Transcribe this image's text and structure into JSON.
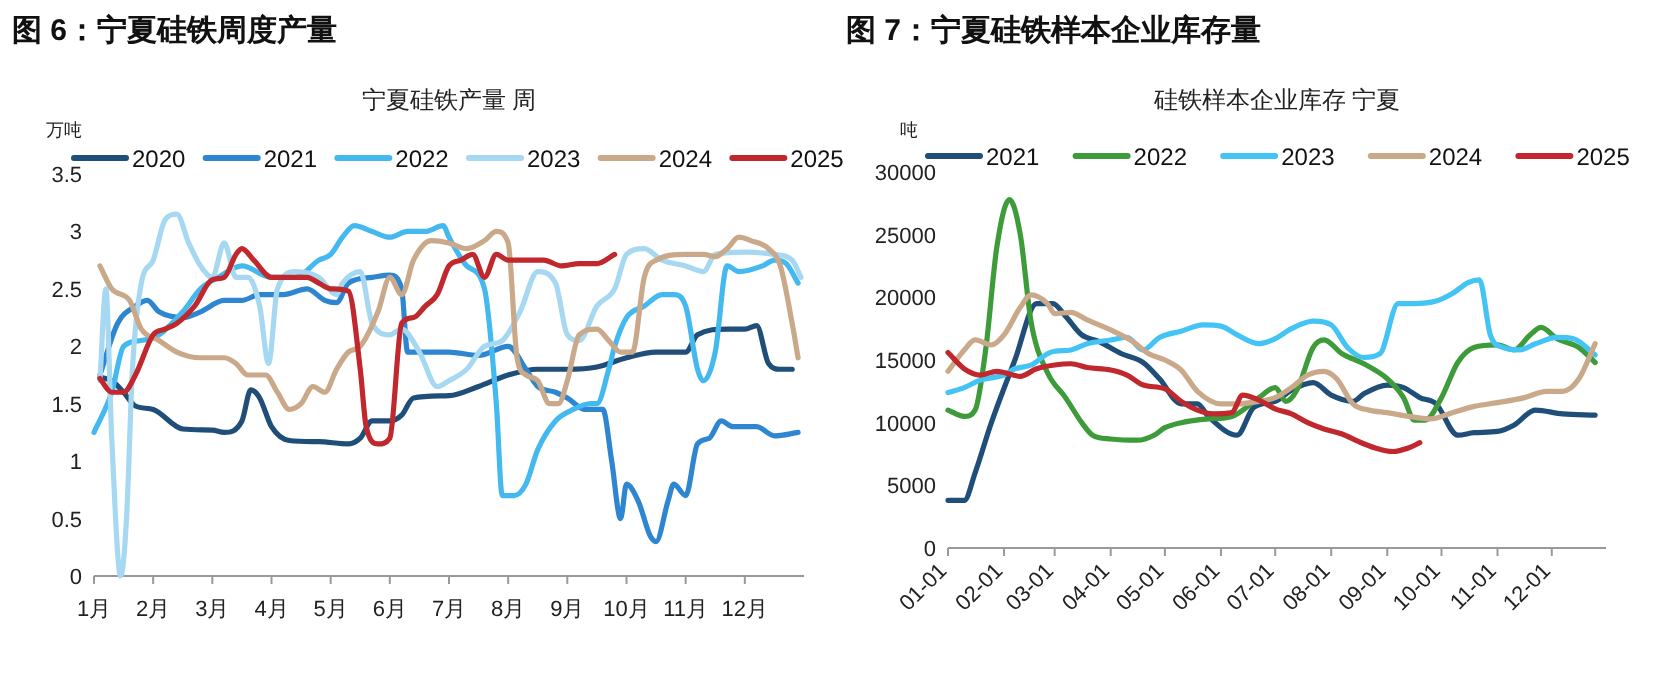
{
  "chart_data": [
    {
      "type": "line",
      "title": "图 6：宁夏硅铁周度产量",
      "subtitle": "宁夏硅铁产量 周",
      "ylabel": "万吨",
      "legend": "top",
      "xlim": [
        1,
        13
      ],
      "ylim": [
        0,
        3.5
      ],
      "xticks": [
        {
          "value": 1,
          "label": "1月"
        },
        {
          "value": 2,
          "label": "2月"
        },
        {
          "value": 3,
          "label": "3月"
        },
        {
          "value": 4,
          "label": "4月"
        },
        {
          "value": 5,
          "label": "5月"
        },
        {
          "value": 6,
          "label": "6月"
        },
        {
          "value": 7,
          "label": "7月"
        },
        {
          "value": 8,
          "label": "8月"
        },
        {
          "value": 9,
          "label": "9月"
        },
        {
          "value": 10,
          "label": "10月"
        },
        {
          "value": 11,
          "label": "11月"
        },
        {
          "value": 12,
          "label": "12月"
        }
      ],
      "yticks": [
        0,
        0.5,
        1,
        1.5,
        2,
        2.5,
        3,
        3.5
      ],
      "series": [
        {
          "name": "2020",
          "color": "#1f4e79",
          "x": [
            1.1,
            1.3,
            1.5,
            1.7,
            2.0,
            2.5,
            3.0,
            3.2,
            3.5,
            3.65,
            3.8,
            4.0,
            4.3,
            4.8,
            5.3,
            5.5,
            5.7,
            6.0,
            6.2,
            6.4,
            7.0,
            7.5,
            8.0,
            8.5,
            9.0,
            9.5,
            10.0,
            10.5,
            11.0,
            11.2,
            11.7,
            12.0,
            12.2,
            12.4,
            12.6,
            12.8
          ],
          "values": [
            1.73,
            1.7,
            1.6,
            1.48,
            1.45,
            1.28,
            1.27,
            1.25,
            1.35,
            1.62,
            1.55,
            1.3,
            1.18,
            1.17,
            1.15,
            1.2,
            1.35,
            1.35,
            1.4,
            1.55,
            1.57,
            1.65,
            1.75,
            1.8,
            1.8,
            1.82,
            1.9,
            1.95,
            1.95,
            2.1,
            2.15,
            2.15,
            2.18,
            1.85,
            1.8,
            1.8
          ]
        },
        {
          "name": "2021",
          "color": "#2e86d0",
          "x": [
            1.1,
            1.4,
            1.7,
            1.9,
            2.1,
            2.5,
            2.8,
            3.2,
            3.5,
            3.8,
            4.2,
            4.6,
            4.9,
            5.1,
            5.3,
            5.7,
            6.0,
            6.2,
            6.3,
            6.5,
            7.0,
            7.5,
            8.0,
            8.3,
            8.5,
            8.8,
            9.0,
            9.3,
            9.6,
            9.75,
            9.9,
            10.0,
            10.2,
            10.4,
            10.5,
            10.7,
            10.8,
            11.0,
            11.2,
            11.4,
            11.6,
            11.8,
            12.2,
            12.5,
            12.9
          ],
          "values": [
            1.75,
            2.2,
            2.35,
            2.4,
            2.3,
            2.25,
            2.3,
            2.4,
            2.4,
            2.45,
            2.45,
            2.5,
            2.4,
            2.38,
            2.55,
            2.6,
            2.62,
            2.5,
            1.95,
            1.95,
            1.95,
            1.92,
            2.0,
            1.8,
            1.65,
            1.6,
            1.55,
            1.45,
            1.45,
            1.0,
            0.5,
            0.8,
            0.65,
            0.35,
            0.3,
            0.65,
            0.8,
            0.7,
            1.15,
            1.2,
            1.35,
            1.3,
            1.3,
            1.22,
            1.25
          ]
        },
        {
          "name": "2022",
          "color": "#44b9ef",
          "x": [
            1.0,
            1.3,
            1.5,
            1.8,
            2.1,
            2.5,
            2.8,
            3.1,
            3.5,
            4.0,
            4.4,
            4.8,
            5.0,
            5.2,
            5.4,
            5.7,
            6.0,
            6.3,
            6.6,
            6.9,
            7.0,
            7.3,
            7.6,
            7.8,
            7.9,
            8.1,
            8.3,
            8.5,
            8.8,
            9.1,
            9.4,
            9.5,
            9.7,
            9.8,
            10.0,
            10.3,
            10.6,
            10.8,
            11.0,
            11.2,
            11.3,
            11.5,
            11.7,
            11.9,
            12.3,
            12.5,
            12.7,
            12.9
          ],
          "values": [
            1.25,
            1.6,
            2.0,
            2.05,
            2.1,
            2.3,
            2.5,
            2.6,
            2.7,
            2.6,
            2.6,
            2.75,
            2.8,
            2.95,
            3.05,
            3.0,
            2.95,
            3.0,
            3.0,
            3.05,
            2.95,
            2.7,
            2.5,
            1.5,
            0.7,
            0.7,
            0.8,
            1.1,
            1.35,
            1.45,
            1.5,
            1.5,
            1.8,
            2.0,
            2.25,
            2.35,
            2.45,
            2.45,
            2.35,
            1.8,
            1.7,
            1.95,
            2.7,
            2.65,
            2.7,
            2.75,
            2.72,
            2.55
          ]
        },
        {
          "name": "2023",
          "color": "#a6d8f2",
          "x": [
            1.1,
            1.2,
            1.3,
            1.45,
            1.55,
            1.65,
            1.8,
            2.0,
            2.2,
            2.4,
            2.6,
            2.8,
            3.0,
            3.2,
            3.4,
            3.6,
            3.8,
            3.95,
            4.1,
            4.4,
            4.8,
            5.1,
            5.2,
            5.5,
            5.7,
            6.0,
            6.2,
            6.5,
            6.8,
            7.0,
            7.3,
            7.6,
            7.9,
            8.2,
            8.5,
            8.8,
            9.0,
            9.2,
            9.5,
            9.8,
            10.0,
            10.3,
            10.6,
            11.0,
            11.3,
            11.5,
            12.0,
            12.5,
            12.8,
            12.95
          ],
          "values": [
            1.7,
            2.5,
            1.2,
            0,
            0.5,
            1.8,
            2.55,
            2.75,
            3.1,
            3.15,
            2.9,
            2.7,
            2.6,
            2.9,
            2.6,
            2.6,
            2.35,
            1.85,
            2.5,
            2.65,
            2.6,
            2.45,
            2.55,
            2.65,
            2.2,
            2.1,
            2.15,
            1.95,
            1.65,
            1.7,
            1.8,
            2.0,
            2.05,
            2.3,
            2.65,
            2.55,
            2.1,
            2.05,
            2.35,
            2.5,
            2.8,
            2.85,
            2.75,
            2.7,
            2.65,
            2.8,
            2.82,
            2.8,
            2.75,
            2.6
          ]
        },
        {
          "name": "2024",
          "color": "#c9a98a",
          "x": [
            1.1,
            1.3,
            1.6,
            1.8,
            2.1,
            2.4,
            2.8,
            3.2,
            3.4,
            3.6,
            3.9,
            4.1,
            4.3,
            4.5,
            4.7,
            4.9,
            5.1,
            5.3,
            5.5,
            5.8,
            6.0,
            6.2,
            6.4,
            6.7,
            7.0,
            7.3,
            7.6,
            7.8,
            8.0,
            8.15,
            8.3,
            8.5,
            8.7,
            8.85,
            9.0,
            9.2,
            9.5,
            9.7,
            9.9,
            10.1,
            10.3,
            10.5,
            11.0,
            11.3,
            11.5,
            11.7,
            11.9,
            12.1,
            12.4,
            12.6,
            12.8,
            12.9
          ],
          "values": [
            2.7,
            2.5,
            2.4,
            2.15,
            2.05,
            1.95,
            1.9,
            1.9,
            1.85,
            1.75,
            1.75,
            1.6,
            1.45,
            1.5,
            1.65,
            1.6,
            1.8,
            1.95,
            2.0,
            2.3,
            2.6,
            2.45,
            2.75,
            2.92,
            2.9,
            2.85,
            2.92,
            3.0,
            2.9,
            1.9,
            1.75,
            1.7,
            1.5,
            1.5,
            1.7,
            2.1,
            2.15,
            2.05,
            1.95,
            1.95,
            2.6,
            2.75,
            2.8,
            2.8,
            2.78,
            2.85,
            2.95,
            2.92,
            2.85,
            2.7,
            2.2,
            1.9
          ]
        },
        {
          "name": "2025",
          "color": "#c0282d",
          "x": [
            1.1,
            1.3,
            1.5,
            1.7,
            2.0,
            2.2,
            2.4,
            2.7,
            3.0,
            3.2,
            3.4,
            3.5,
            3.7,
            4.0,
            4.3,
            4.6,
            4.8,
            5.0,
            5.3,
            5.5,
            5.6,
            5.8,
            6.0,
            6.2,
            6.4,
            6.6,
            6.8,
            7.0,
            7.2,
            7.4,
            7.6,
            7.8,
            8.0,
            8.3,
            8.6,
            8.9,
            9.2,
            9.5,
            9.8
          ],
          "values": [
            1.72,
            1.6,
            1.6,
            1.75,
            2.1,
            2.15,
            2.2,
            2.35,
            2.58,
            2.6,
            2.8,
            2.85,
            2.75,
            2.6,
            2.6,
            2.6,
            2.55,
            2.5,
            2.48,
            1.8,
            1.3,
            1.15,
            1.2,
            2.2,
            2.25,
            2.35,
            2.45,
            2.7,
            2.75,
            2.8,
            2.6,
            2.8,
            2.75,
            2.75,
            2.75,
            2.7,
            2.72,
            2.72,
            2.8
          ]
        }
      ]
    },
    {
      "type": "line",
      "title": "图 7：宁夏硅铁样本企业库存量",
      "subtitle": "硅铁样本企业库存 宁夏",
      "ylabel": "吨",
      "legend": "top",
      "xlim": [
        "--01-01",
        "--12-31"
      ],
      "ylim": [
        0,
        30000
      ],
      "xticks": [
        {
          "value": "--01-01",
          "label": "01-01"
        },
        {
          "value": "--02-01",
          "label": "02-01"
        },
        {
          "value": "--03-01",
          "label": "03-01"
        },
        {
          "value": "--04-01",
          "label": "04-01"
        },
        {
          "value": "--05-01",
          "label": "05-01"
        },
        {
          "value": "--06-01",
          "label": "06-01"
        },
        {
          "value": "--07-01",
          "label": "07-01"
        },
        {
          "value": "--08-01",
          "label": "08-01"
        },
        {
          "value": "--09-01",
          "label": "09-01"
        },
        {
          "value": "--10-01",
          "label": "10-01"
        },
        {
          "value": "--11-01",
          "label": "11-01"
        },
        {
          "value": "--12-01",
          "label": "12-01"
        }
      ],
      "yticks": [
        0,
        5000,
        10000,
        15000,
        20000,
        25000,
        30000
      ],
      "series": [
        {
          "name": "2021",
          "color": "#1f4e79",
          "x": [
            "--01-01",
            "--01-10",
            "--01-16",
            "--01-25",
            "--02-07",
            "--02-19",
            "--02-28",
            "--03-07",
            "--03-16",
            "--03-25",
            "--04-07",
            "--04-19",
            "--04-28",
            "--05-10",
            "--05-19",
            "--05-25",
            "--06-10",
            "--06-19",
            "--07-01",
            "--07-10",
            "--07-22",
            "--08-01",
            "--08-13",
            "--08-19",
            "--09-01",
            "--09-10",
            "--09-19",
            "--09-28",
            "--10-10",
            "--10-19",
            "--11-01",
            "--11-10",
            "--11-22",
            "--12-07",
            "--12-25"
          ],
          "values": [
            3800,
            3800,
            6000,
            10000,
            15000,
            19500,
            19500,
            18500,
            17000,
            16500,
            15500,
            14800,
            13500,
            11500,
            11500,
            10500,
            9000,
            11200,
            11700,
            12600,
            13200,
            12200,
            11700,
            12300,
            13000,
            12800,
            12000,
            11500,
            9000,
            9200,
            9300,
            9800,
            11000,
            10700,
            10600
          ]
        },
        {
          "name": "2022",
          "color": "#3e9b3a",
          "x": [
            "--01-01",
            "--01-10",
            "--01-16",
            "--01-22",
            "--01-28",
            "--02-04",
            "--02-10",
            "--02-16",
            "--02-25",
            "--03-07",
            "--03-16",
            "--03-22",
            "--04-01",
            "--04-16",
            "--04-25",
            "--05-01",
            "--05-10",
            "--05-25",
            "--06-07",
            "--06-22",
            "--07-01",
            "--07-07",
            "--07-13",
            "--07-22",
            "--07-28",
            "--08-07",
            "--08-19",
            "--09-01",
            "--09-10",
            "--09-16",
            "--09-22",
            "--10-01",
            "--10-10",
            "--10-19",
            "--11-01",
            "--11-10",
            "--11-19",
            "--11-25",
            "--12-04",
            "--12-16",
            "--12-25"
          ],
          "values": [
            11000,
            10500,
            11000,
            16000,
            24000,
            27800,
            25000,
            18000,
            14000,
            12000,
            10000,
            9000,
            8700,
            8600,
            9000,
            9600,
            10000,
            10300,
            10500,
            12000,
            12800,
            11700,
            12600,
            16000,
            16600,
            15500,
            14700,
            13500,
            12000,
            10200,
            10200,
            12000,
            14800,
            16000,
            16200,
            15800,
            17000,
            17600,
            16700,
            16000,
            14800
          ]
        },
        {
          "name": "2023",
          "color": "#44c4f4",
          "x": [
            "--01-01",
            "--01-10",
            "--01-19",
            "--02-01",
            "--02-07",
            "--02-16",
            "--02-25",
            "--03-01",
            "--03-10",
            "--03-19",
            "--04-01",
            "--04-10",
            "--04-19",
            "--04-28",
            "--05-10",
            "--05-22",
            "--06-01",
            "--06-10",
            "--06-22",
            "--07-01",
            "--07-10",
            "--07-22",
            "--08-01",
            "--08-10",
            "--08-19",
            "--08-28",
            "--09-07",
            "--09-16",
            "--09-28",
            "--10-07",
            "--10-16",
            "--10-22",
            "--10-28",
            "--11-04",
            "--11-13",
            "--11-22",
            "--12-04",
            "--12-13",
            "--12-25"
          ],
          "values": [
            12400,
            12800,
            13400,
            13800,
            14300,
            14600,
            15500,
            15700,
            15800,
            16300,
            16600,
            16800,
            15800,
            16800,
            17300,
            17800,
            17700,
            17000,
            16300,
            16700,
            17500,
            18100,
            17800,
            16000,
            15200,
            15500,
            19500,
            19500,
            19700,
            20300,
            21200,
            21400,
            17000,
            16000,
            15800,
            16300,
            16800,
            16700,
            15400
          ]
        },
        {
          "name": "2024",
          "color": "#c9a98a",
          "x": [
            "--01-01",
            "--01-10",
            "--01-16",
            "--01-25",
            "--02-01",
            "--02-10",
            "--02-16",
            "--02-25",
            "--03-01",
            "--03-10",
            "--03-19",
            "--04-01",
            "--04-13",
            "--04-22",
            "--05-01",
            "--05-10",
            "--05-19",
            "--06-01",
            "--06-10",
            "--06-22",
            "--07-01",
            "--07-10",
            "--07-19",
            "--07-28",
            "--08-04",
            "--08-13",
            "--08-22",
            "--09-01",
            "--09-13",
            "--09-25",
            "--10-07",
            "--10-19",
            "--11-01",
            "--11-16",
            "--11-28",
            "--12-07",
            "--12-16",
            "--12-25"
          ],
          "values": [
            14100,
            15800,
            16600,
            16200,
            17000,
            19200,
            20200,
            19500,
            18700,
            18800,
            18200,
            17400,
            16500,
            15500,
            15000,
            14200,
            12500,
            11500,
            11500,
            11700,
            12000,
            12800,
            13800,
            14100,
            13500,
            11500,
            11000,
            10800,
            10500,
            10300,
            10800,
            11300,
            11600,
            12000,
            12500,
            12500,
            13500,
            16300
          ]
        },
        {
          "name": "2025",
          "color": "#c0282d",
          "x": [
            "--01-01",
            "--01-10",
            "--01-19",
            "--01-28",
            "--02-10",
            "--02-19",
            "--03-01",
            "--03-10",
            "--03-19",
            "--04-01",
            "--04-10",
            "--04-19",
            "--05-01",
            "--05-10",
            "--05-19",
            "--05-28",
            "--06-07",
            "--06-13",
            "--06-22",
            "--07-01",
            "--07-10",
            "--07-19",
            "--07-28",
            "--08-07",
            "--08-16",
            "--08-25",
            "--09-04",
            "--09-13",
            "--09-19"
          ],
          "values": [
            15600,
            14300,
            13800,
            14100,
            13700,
            14300,
            14600,
            14700,
            14400,
            14200,
            13800,
            13000,
            12700,
            11700,
            11000,
            10700,
            10800,
            12200,
            11800,
            11100,
            10700,
            10000,
            9500,
            9100,
            8500,
            8000,
            7700,
            8000,
            8400
          ]
        }
      ]
    }
  ]
}
